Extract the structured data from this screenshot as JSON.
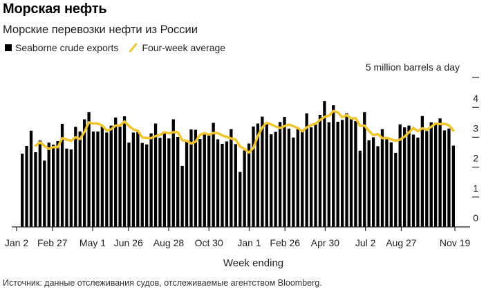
{
  "title": "Морская нефть",
  "subtitle": "Морские перевозки нефти из России",
  "legend": {
    "bar_label": "Seaborne crude exports",
    "line_label": "Four-week average"
  },
  "source": "Источник: данные отслеживания судов, отслеживаемые агентством Bloomberg.",
  "colors": {
    "bars": "#000000",
    "line": "#f1c52b",
    "axis": "#222222"
  },
  "chart_data": {
    "type": "bar",
    "title": "Морская нефть",
    "subtitle": "Морские перевозки нефти из России",
    "xlabel": "Week ending",
    "ylabel": "million barrels a day",
    "units_label": "5 million barrels a day",
    "ylim": [
      0,
      5
    ],
    "grid": false,
    "legend_position": "top-left",
    "yticks": [
      {
        "value": 5,
        "label": ""
      },
      {
        "value": 4,
        "label": "4"
      },
      {
        "value": 3,
        "label": "3"
      },
      {
        "value": 2,
        "label": "2"
      },
      {
        "value": 1,
        "label": "1"
      },
      {
        "value": 0,
        "label": "0"
      }
    ],
    "xticks": [
      {
        "week": 0,
        "label": "Jan 2"
      },
      {
        "week": 8,
        "label": "Feb 27"
      },
      {
        "week": 17,
        "label": "May 1"
      },
      {
        "week": 25,
        "label": "Jun 26"
      },
      {
        "week": 34,
        "label": "Aug 28"
      },
      {
        "week": 43,
        "label": "Oct 30"
      },
      {
        "week": 52,
        "label": "Jan 1"
      },
      {
        "week": 60,
        "label": "Feb 26"
      },
      {
        "week": 69,
        "label": "Apr 30"
      },
      {
        "week": 78,
        "label": "Jul 2"
      },
      {
        "week": 86,
        "label": "Aug 27"
      },
      {
        "week": 98,
        "label": "Nov 19"
      }
    ],
    "series": [
      {
        "name": "Seaborne crude exports",
        "type": "bar",
        "first_week": 1,
        "values": [
          2.45,
          2.71,
          3.22,
          2.5,
          2.89,
          2.22,
          2.82,
          2.75,
          2.87,
          3.45,
          2.62,
          2.59,
          3.35,
          3.19,
          3.6,
          3.84,
          3.19,
          3.19,
          3.35,
          3.16,
          3.39,
          3.66,
          3.35,
          3.7,
          2.82,
          3.16,
          3.18,
          2.81,
          2.76,
          3.13,
          3.46,
          2.98,
          3.12,
          2.96,
          3.6,
          3.01,
          2.04,
          2.85,
          3.26,
          3.25,
          2.94,
          3.09,
          3.06,
          3.48,
          2.93,
          2.78,
          2.86,
          3.27,
          2.77,
          1.84,
          2.56,
          2.79,
          3.36,
          3.46,
          3.69,
          3.45,
          3.1,
          3.18,
          3.51,
          3.68,
          3.29,
          2.99,
          3.27,
          3.25,
          3.8,
          3.33,
          3.43,
          3.75,
          4.21,
          3.5,
          4.07,
          3.52,
          3.58,
          3.8,
          3.62,
          3.54,
          2.55,
          3.84,
          2.9,
          3.0,
          2.7,
          3.27,
          2.93,
          2.83,
          2.48,
          3.43,
          3.33,
          3.39,
          3.09,
          2.99,
          3.71,
          3.21,
          3.5,
          3.43,
          3.63,
          3.23,
          3.29,
          2.72
        ]
      },
      {
        "name": "Four-week average",
        "type": "line",
        "first_week": 4,
        "values": [
          2.72,
          2.83,
          2.71,
          2.61,
          2.67,
          2.67,
          2.97,
          2.92,
          2.88,
          3.0,
          2.94,
          3.18,
          3.5,
          3.46,
          3.46,
          3.39,
          3.22,
          3.27,
          3.39,
          3.39,
          3.53,
          3.38,
          3.26,
          3.22,
          2.99,
          2.98,
          2.97,
          3.04,
          3.08,
          3.17,
          3.13,
          3.17,
          3.17,
          2.9,
          2.88,
          2.79,
          2.85,
          3.08,
          3.14,
          3.09,
          3.14,
          3.14,
          3.06,
          3.01,
          2.96,
          2.92,
          2.69,
          2.61,
          2.49,
          2.64,
          3.04,
          3.33,
          3.49,
          3.43,
          3.36,
          3.31,
          3.37,
          3.42,
          3.37,
          3.31,
          3.2,
          3.33,
          3.41,
          3.45,
          3.58,
          3.68,
          3.72,
          3.88,
          3.83,
          3.67,
          3.74,
          3.63,
          3.64,
          3.38,
          3.39,
          3.21,
          3.07,
          3.11,
          2.97,
          2.98,
          2.93,
          2.88,
          2.92,
          3.02,
          3.16,
          3.31,
          3.2,
          3.3,
          3.25,
          3.35,
          3.46,
          3.44,
          3.45,
          3.4,
          3.22
        ]
      }
    ]
  }
}
